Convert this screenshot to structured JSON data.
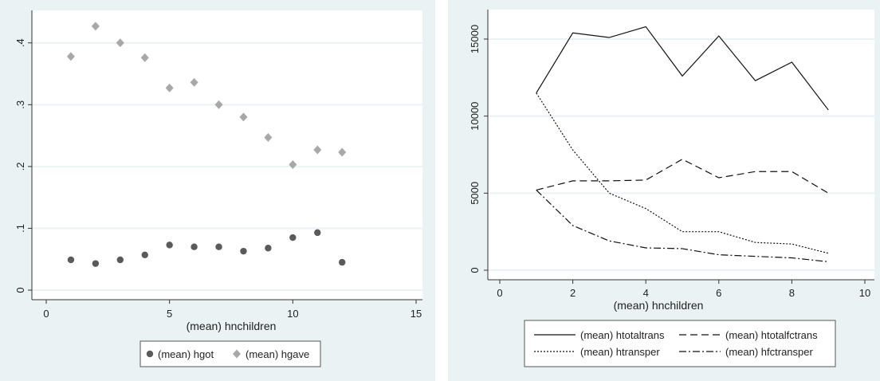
{
  "colors": {
    "background": "#eaf2f3",
    "plot_area": "#ffffff",
    "grid": "#eaf2f3",
    "hgot": "#5a5a5a",
    "hgave": "#a8a8a8",
    "lines": "#111111"
  },
  "chart_data": [
    {
      "type": "scatter",
      "xlabel": "(mean) hnchildren",
      "ylabel": "",
      "xlim": [
        0,
        15
      ],
      "ylim": [
        0,
        0.45
      ],
      "xticks": [
        "0",
        "5",
        "10",
        "15"
      ],
      "yticks": [
        "0",
        ".1",
        ".2",
        ".3",
        ".4"
      ],
      "grid": true,
      "legend": "bottom",
      "series": [
        {
          "name": "(mean) hgot",
          "marker": "circle",
          "color": "#5a5a5a",
          "x": [
            1,
            2,
            3,
            4,
            5,
            6,
            7,
            8,
            9,
            10,
            11,
            12
          ],
          "y": [
            0.049,
            0.043,
            0.049,
            0.057,
            0.073,
            0.07,
            0.07,
            0.063,
            0.068,
            0.085,
            0.093,
            0.045
          ]
        },
        {
          "name": "(mean) hgave",
          "marker": "diamond",
          "color": "#a8a8a8",
          "x": [
            1,
            2,
            3,
            4,
            5,
            6,
            7,
            8,
            9,
            10,
            11,
            12
          ],
          "y": [
            0.378,
            0.427,
            0.4,
            0.376,
            0.327,
            0.336,
            0.3,
            0.28,
            0.247,
            0.203,
            0.227,
            0.223
          ]
        }
      ]
    },
    {
      "type": "line",
      "xlabel": "(mean) hnchildren",
      "ylabel": "",
      "xlim": [
        0,
        10
      ],
      "ylim": [
        -500,
        16500
      ],
      "xticks": [
        "0",
        "2",
        "4",
        "6",
        "8",
        "10"
      ],
      "yticks": [
        "0",
        "5000",
        "10000",
        "15000"
      ],
      "grid": true,
      "legend": "bottom",
      "x": [
        1,
        2,
        3,
        4,
        5,
        6,
        7,
        8,
        9
      ],
      "series": [
        {
          "name": "(mean) htotaltrans",
          "dash": "",
          "values": [
            11500,
            15400,
            15100,
            15800,
            12600,
            15200,
            12300,
            13500,
            10400
          ]
        },
        {
          "name": "(mean) htotalfctrans",
          "dash": "9 5",
          "values": [
            5200,
            5800,
            5800,
            5850,
            7200,
            6000,
            6400,
            6400,
            5000
          ]
        },
        {
          "name": "(mean) htransper",
          "dash": "2 2",
          "values": [
            11500,
            7800,
            5000,
            4000,
            2500,
            2500,
            1800,
            1700,
            1100
          ]
        },
        {
          "name": "(mean) hfctransper",
          "dash": "9 3 2 3",
          "values": [
            5200,
            2900,
            1900,
            1450,
            1400,
            1000,
            900,
            800,
            550
          ]
        }
      ]
    }
  ]
}
